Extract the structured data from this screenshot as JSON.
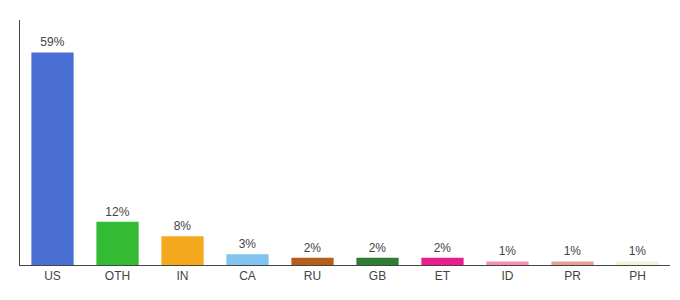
{
  "chart_data": {
    "type": "bar",
    "categories": [
      "US",
      "OTH",
      "IN",
      "CA",
      "RU",
      "GB",
      "ET",
      "ID",
      "PR",
      "PH"
    ],
    "values": [
      59,
      12,
      8,
      3,
      2,
      2,
      2,
      1,
      1,
      1
    ],
    "value_labels": [
      "59%",
      "12%",
      "8%",
      "3%",
      "2%",
      "2%",
      "2%",
      "1%",
      "1%",
      "1%"
    ],
    "colors": [
      "#4a6fd4",
      "#33bb33",
      "#f4a81d",
      "#82c4f0",
      "#b85c1a",
      "#2e7d32",
      "#e91e8c",
      "#f48fb1",
      "#e8a090",
      "#f5f0d8"
    ],
    "ylim": [
      0,
      68
    ],
    "grid": false,
    "data_labels": true,
    "tick_labels": "x"
  }
}
